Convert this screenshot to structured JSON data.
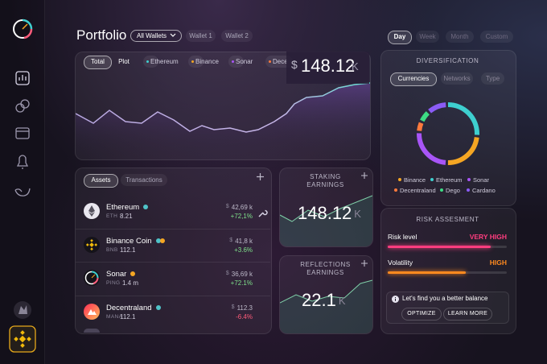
{
  "header": {
    "title": "Portfolio",
    "wallet_select": "All Wallets",
    "wallets": [
      "Wallet 1",
      "Wallet 2"
    ],
    "periods": [
      "Day",
      "Week",
      "Month",
      "Custom"
    ]
  },
  "overview": {
    "tabs": [
      "Total",
      "Plot"
    ],
    "legend": [
      {
        "name": "Ethereum",
        "color": "#3ecfcf"
      },
      {
        "name": "Binance",
        "color": "#f5a623"
      },
      {
        "name": "Sonar",
        "color": "#a855f7"
      },
      {
        "name": "Decentraland",
        "color": "#ff7a3d"
      }
    ],
    "currency": "$",
    "amount": "148.12",
    "unit": "K"
  },
  "assets": {
    "tabs": [
      "Assets",
      "Transactions"
    ],
    "rows": [
      {
        "name": "Ethereum",
        "symbol": "ETH",
        "amount": "8.21",
        "currency": "$",
        "value": "42,69 k",
        "change": "+72,1%"
      },
      {
        "name": "Binance Coin",
        "symbol": "BNB",
        "amount": "112.1",
        "currency": "$",
        "value": "41,8 k",
        "change": "+3.6%"
      },
      {
        "name": "Sonar",
        "symbol": "PING",
        "amount": "1.4 m",
        "currency": "$",
        "value": "36,69 k",
        "change": "+72.1%"
      },
      {
        "name": "Decentraland",
        "symbol": "MANA",
        "amount": "112.1",
        "currency": "$",
        "value": "112.3",
        "change": "-6.4%"
      }
    ]
  },
  "staking": {
    "title": "STAKING EARNINGS",
    "amount": "148.12",
    "unit": "K"
  },
  "reflections": {
    "title": "REFLECTIONS EARNINGS",
    "amount": "22.1",
    "unit": "K"
  },
  "diversification": {
    "title": "DIVERSIFICATION",
    "tabs": [
      "Currencies",
      "Networks",
      "Type"
    ],
    "legend": [
      {
        "name": "Binance",
        "color": "#f5a623"
      },
      {
        "name": "Ethereum",
        "color": "#3ecfcf"
      },
      {
        "name": "Sonar",
        "color": "#a855f7"
      },
      {
        "name": "Decentraland",
        "color": "#ff7a3d"
      },
      {
        "name": "Dego",
        "color": "#3ddc84"
      },
      {
        "name": "Cardano",
        "color": "#8b5cf6"
      }
    ]
  },
  "risk": {
    "title": "RISK ASSESMENT",
    "metrics": [
      {
        "label": "Risk level",
        "value": "VERY HIGH",
        "color": "#ff3d7f"
      },
      {
        "label": "Volatility",
        "value": "HIGH",
        "color": "#ff8a1f"
      }
    ],
    "suggestion": "Let's find you a better balance",
    "buttons": [
      "OPTIMIZE",
      "LEARN MORE"
    ]
  }
}
